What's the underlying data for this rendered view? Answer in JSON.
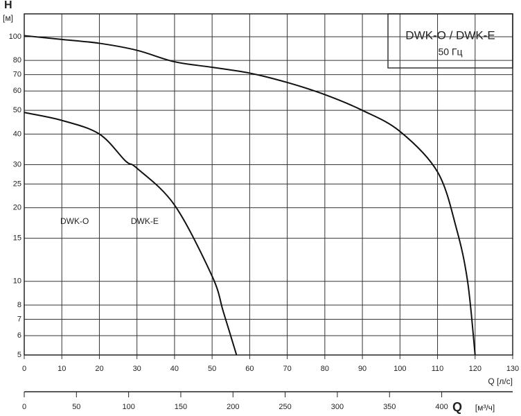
{
  "chart_data": {
    "type": "line",
    "title": "DWK-O / DWK-E",
    "subtitle": "50 Гц",
    "y_label": "H",
    "y_unit": "[м]",
    "x_label": "Q [л/с]",
    "x2_label": "Q",
    "x2_unit": "[м³/ч]",
    "y_log": true,
    "grid": true,
    "xlim": [
      0,
      130
    ],
    "xticks": [
      0,
      10,
      20,
      30,
      40,
      50,
      60,
      70,
      80,
      90,
      100,
      110,
      120,
      130
    ],
    "x2lim": [
      0,
      468
    ],
    "x2ticks": [
      0,
      50,
      100,
      150,
      200,
      250,
      300,
      350,
      400
    ],
    "ylim": [
      5,
      124
    ],
    "yticks": [
      5,
      6,
      7,
      8,
      10,
      15,
      20,
      25,
      30,
      40,
      50,
      60,
      70,
      80,
      100
    ],
    "series": [
      {
        "name": "DWK-O",
        "color": "#111111",
        "x": [
          0,
          10,
          20,
          27,
          30,
          40,
          50,
          53,
          56.5
        ],
        "values": [
          49,
          45.5,
          40,
          31,
          29,
          20.5,
          10.5,
          7.5,
          5
        ]
      },
      {
        "name": "DWK-E",
        "color": "#111111",
        "x": [
          0,
          10,
          20,
          30,
          40,
          50,
          60,
          70,
          80,
          90,
          100,
          110,
          115,
          118,
          120
        ],
        "values": [
          101,
          97.5,
          94,
          88,
          79,
          75,
          71,
          65,
          58,
          50,
          41,
          28,
          16.5,
          10,
          5
        ]
      }
    ]
  }
}
